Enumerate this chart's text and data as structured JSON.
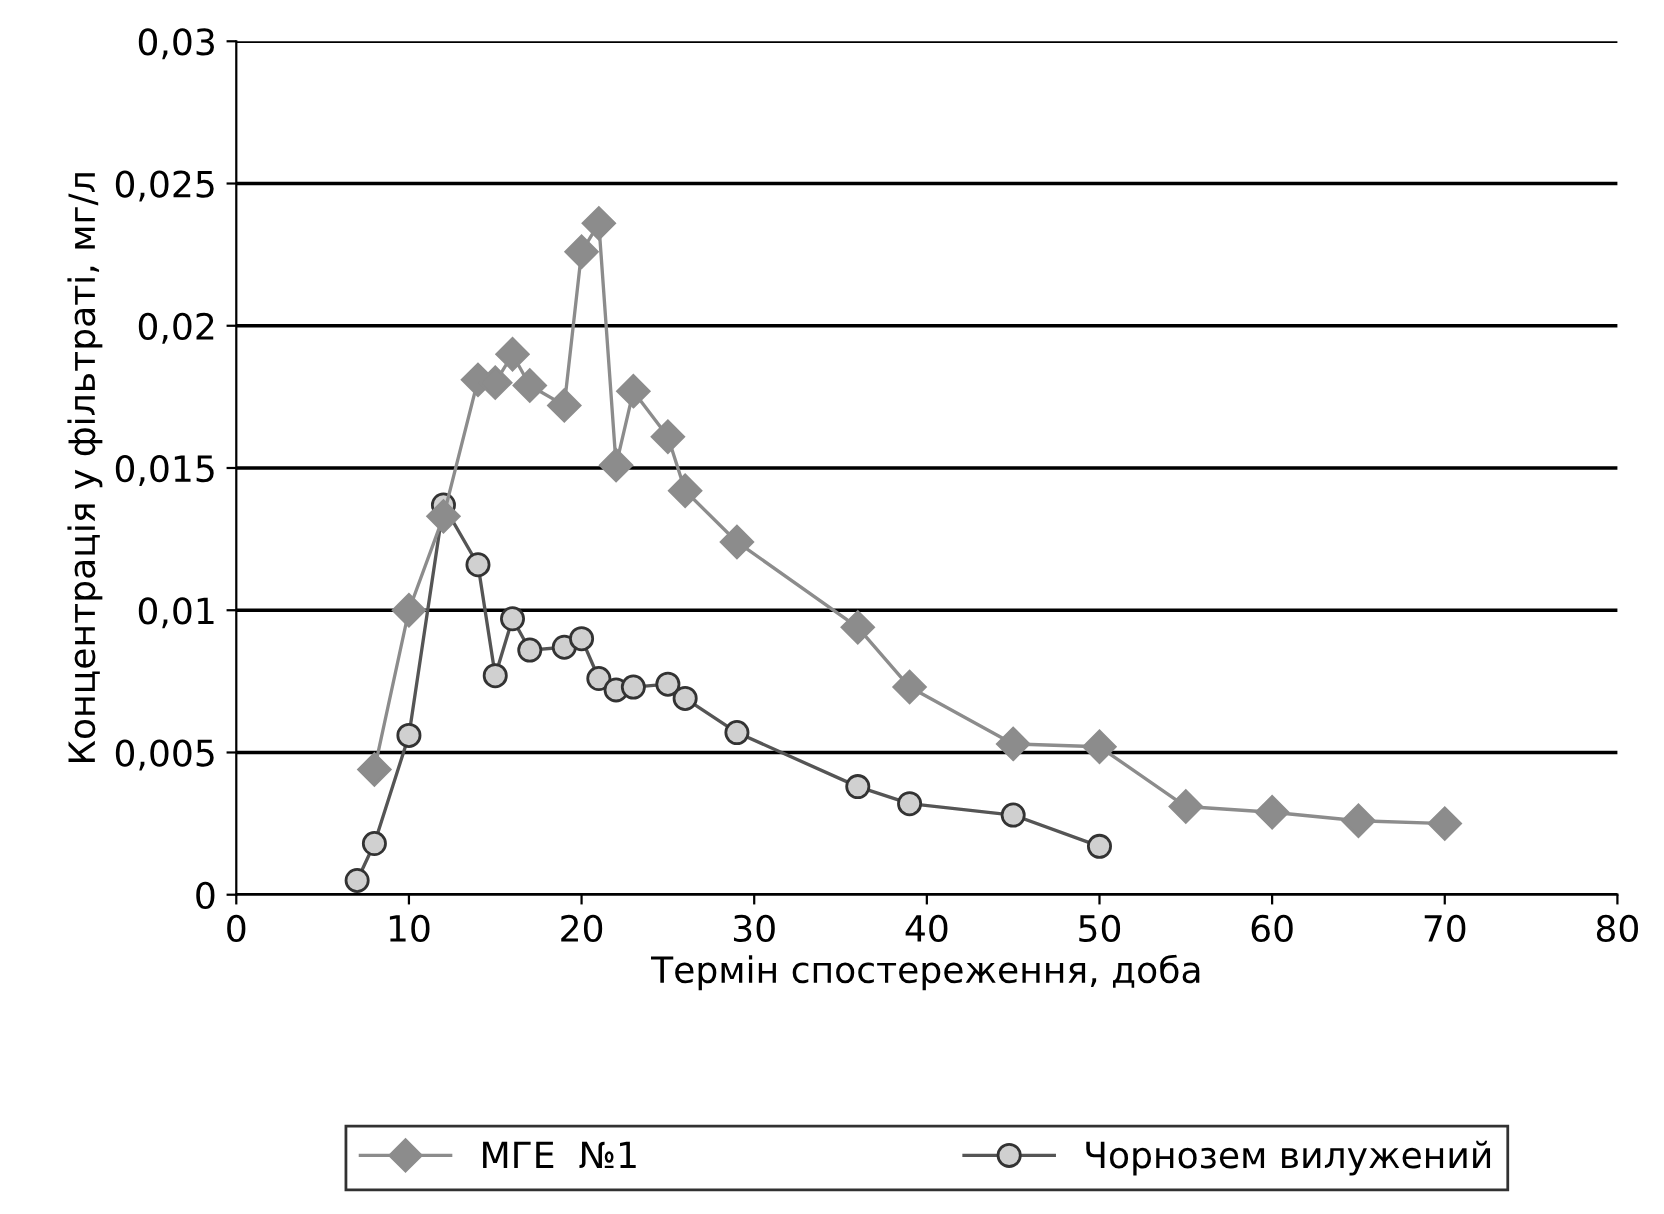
{
  "chart_data": {
    "type": "line",
    "xlabel": "Термін спостереження, доба",
    "ylabel": "Концентрація у фільтраті, мг/л",
    "xlim": [
      0,
      80
    ],
    "xticks": [
      0,
      10,
      20,
      30,
      40,
      50,
      60,
      70,
      80
    ],
    "ylim": [
      0,
      0.03
    ],
    "yticks": [
      {
        "value": 0,
        "label": "0"
      },
      {
        "value": 0.005,
        "label": "0,005"
      },
      {
        "value": 0.01,
        "label": "0,01"
      },
      {
        "value": 0.015,
        "label": "0,015"
      },
      {
        "value": 0.02,
        "label": "0,02"
      },
      {
        "value": 0.025,
        "label": "0,025"
      },
      {
        "value": 0.03,
        "label": "0,03"
      }
    ],
    "grid": "y",
    "legend": "bottom",
    "series": [
      {
        "name": "МГЕ  №1",
        "color": "#8c8c8c",
        "marker": "diamond",
        "x": [
          8,
          10,
          12,
          14,
          15,
          16,
          17,
          19,
          20,
          21,
          22,
          23,
          25,
          26,
          29,
          36,
          39,
          45,
          50,
          55,
          60,
          65,
          70
        ],
        "values": [
          0.0044,
          0.01,
          0.0133,
          0.0181,
          0.018,
          0.019,
          0.0179,
          0.0172,
          0.0226,
          0.0236,
          0.0151,
          0.0177,
          0.0161,
          0.0142,
          0.0124,
          0.0094,
          0.0073,
          0.0053,
          0.0052,
          0.0031,
          0.0029,
          0.0026,
          0.0025
        ]
      },
      {
        "name": "Чорнозем вилужений",
        "color": "#555555",
        "marker": "circle",
        "x": [
          7,
          8,
          10,
          12,
          14,
          15,
          16,
          17,
          19,
          20,
          21,
          22,
          23,
          25,
          26,
          29,
          36,
          39,
          45,
          50
        ],
        "values": [
          0.0005,
          0.0018,
          0.0056,
          0.0137,
          0.0116,
          0.0077,
          0.0097,
          0.0086,
          0.0087,
          0.009,
          0.0076,
          0.0072,
          0.0073,
          0.0074,
          0.0069,
          0.0057,
          0.0038,
          0.0032,
          0.0028,
          0.0017
        ]
      }
    ]
  }
}
